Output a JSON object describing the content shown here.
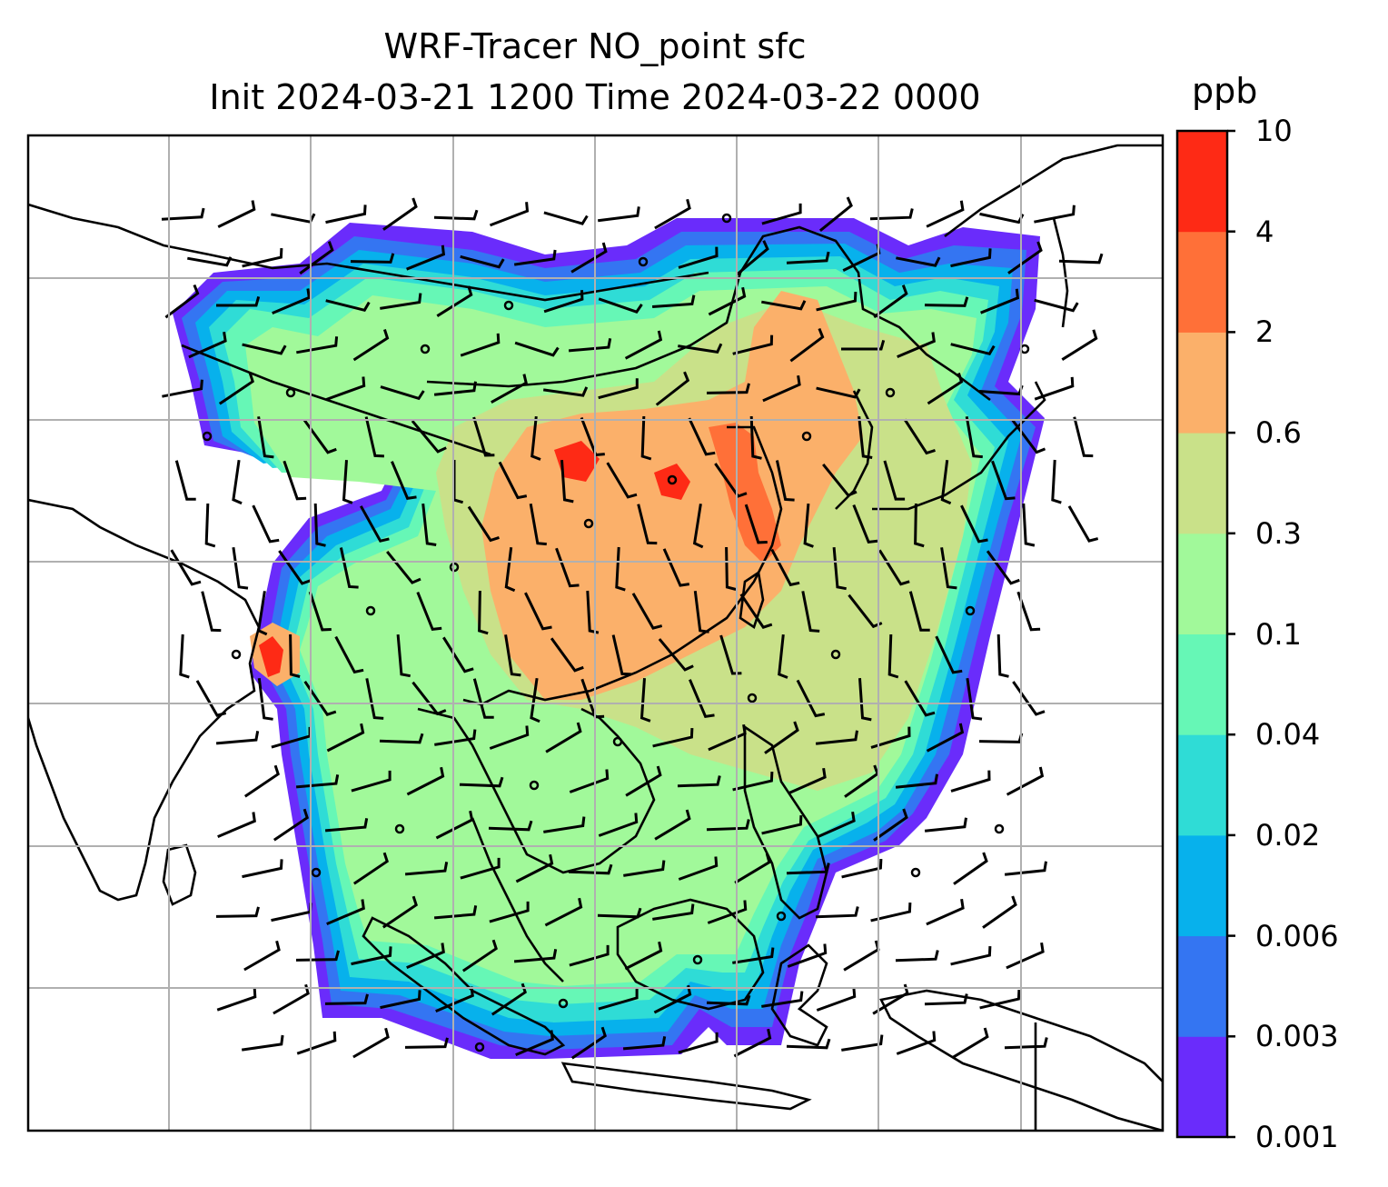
{
  "title": {
    "line1": "WRF-Tracer NO_point sfc",
    "line2": "Init 2024-03-21 1200 Time 2024-03-22 0000"
  },
  "colorbar": {
    "unit": "ppb",
    "levels": [
      "0.001",
      "0.003",
      "0.006",
      "0.02",
      "0.04",
      "0.1",
      "0.3",
      "0.6",
      "2",
      "4",
      "10"
    ],
    "colors": [
      "#6a2cfb",
      "#3475f2",
      "#07b1ec",
      "#2fdcd6",
      "#66f7b6",
      "#a1f99a",
      "#c9e189",
      "#fbb06a",
      "#ff7038",
      "#fe2a15"
    ]
  },
  "map": {
    "variable": "NO_point tracer",
    "coastline_color": "#000000",
    "grid_color": "#b0b0b0",
    "background_color": "#ffffff"
  }
}
